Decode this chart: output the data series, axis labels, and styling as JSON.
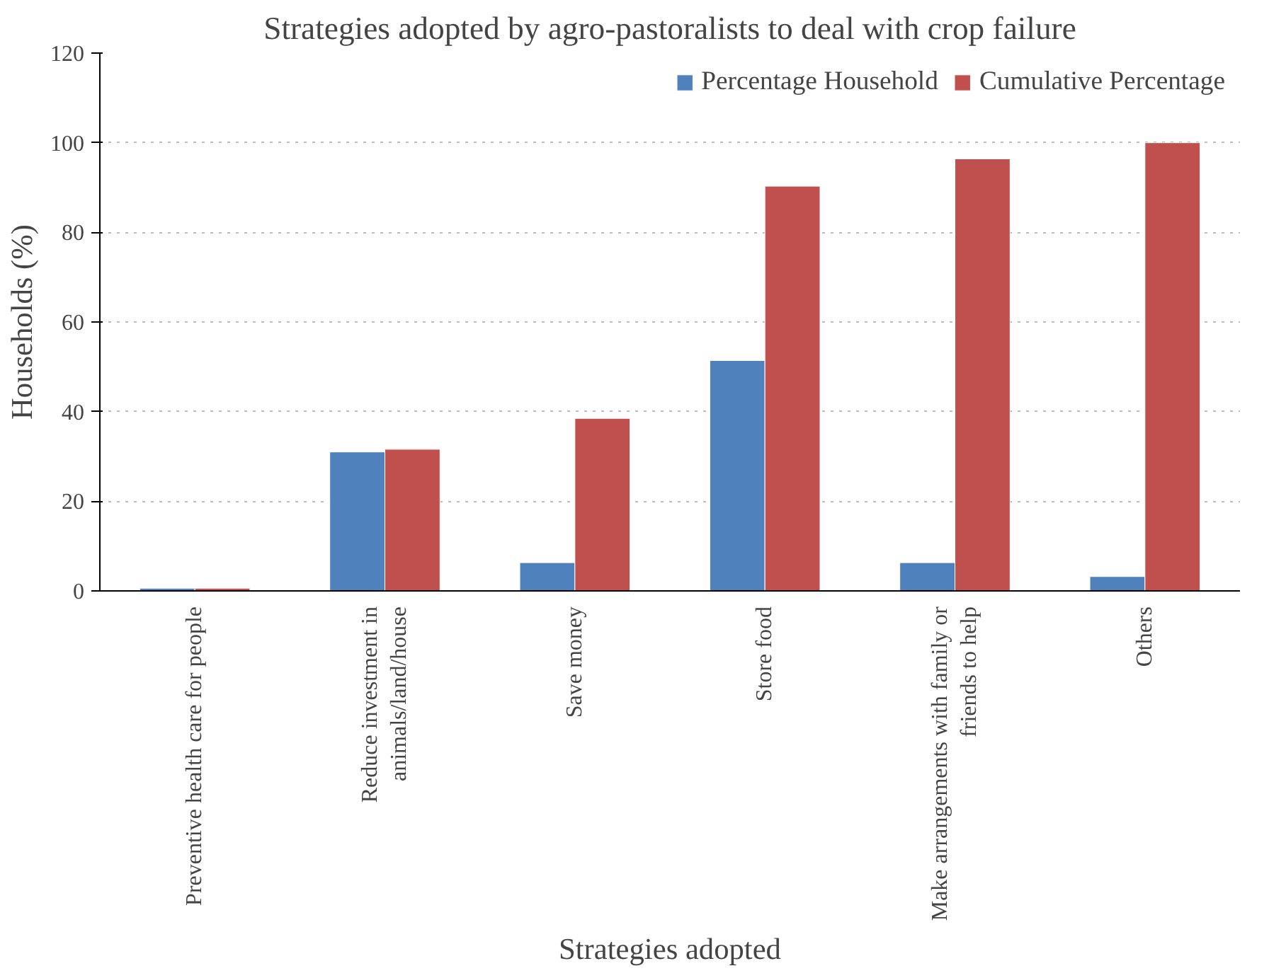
{
  "chart_data": {
    "type": "bar",
    "title": "Strategies adopted by agro-pastoralists to deal with crop failure",
    "xlabel": "Strategies adopted",
    "ylabel": "Households (%)",
    "categories": [
      "Preventive health care for people",
      "Reduce investment in animals/land/house",
      "Save money",
      "Store food",
      "Make arrangements with family or friends to help",
      "Others"
    ],
    "series": [
      {
        "name": "Percentage Household",
        "color": "#4f81bd",
        "values": [
          0.6,
          31,
          6.3,
          51.4,
          6.3,
          3.2
        ]
      },
      {
        "name": "Cumulative Percentage",
        "color": "#c0504d",
        "values": [
          0.6,
          31.6,
          38.5,
          90.3,
          96.4,
          100
        ]
      }
    ],
    "ylim": [
      0,
      120
    ],
    "yticks": [
      0,
      20,
      40,
      60,
      80,
      100,
      120
    ],
    "grid": "y",
    "legend": "top right"
  }
}
